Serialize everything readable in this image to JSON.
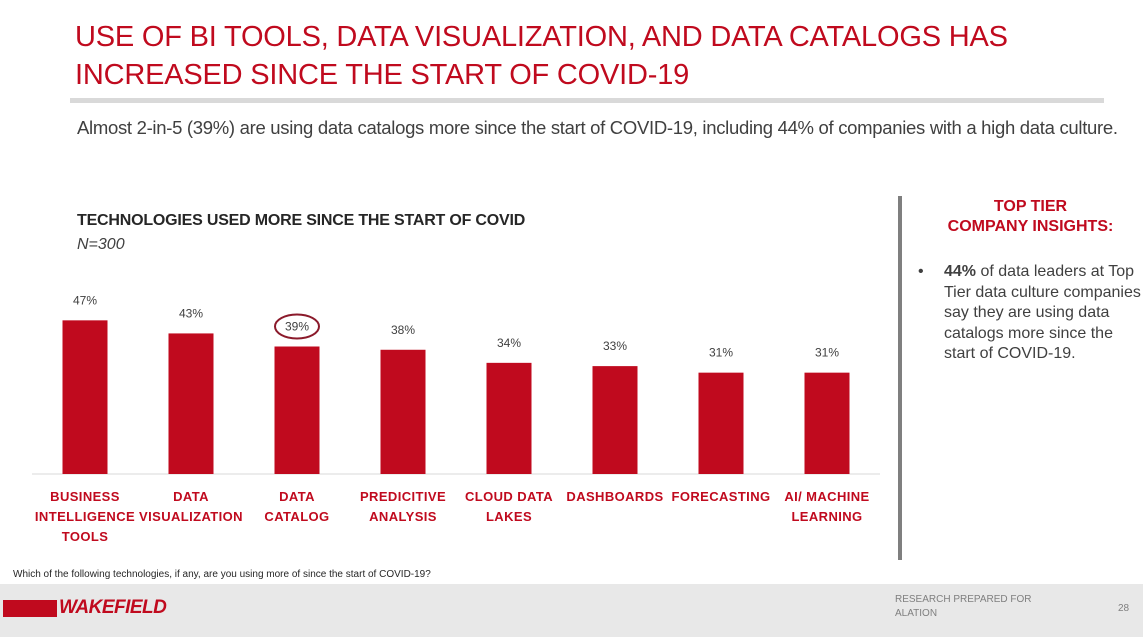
{
  "header": {
    "title": "USE OF BI TOOLS, DATA VISUALIZATION, AND DATA CATALOGS HAS INCREASED SINCE THE START OF COVID-19",
    "subtitle": "Almost 2-in-5 (39%) are using data catalogs more since the start of COVID-19, including 44% of companies with a high data culture."
  },
  "chart_data": {
    "type": "bar",
    "title": "TECHNOLOGIES USED MORE SINCE THE START OF COVID",
    "subtitle": "N=300",
    "categories": [
      [
        "BUSINESS",
        "INTELLIGENCE",
        "TOOLS"
      ],
      [
        "DATA",
        "VISUALIZATION"
      ],
      [
        "DATA",
        "CATALOG"
      ],
      [
        "PREDICITIVE",
        "ANALYSIS"
      ],
      [
        "CLOUD DATA",
        "LAKES"
      ],
      [
        "DASHBOARDS"
      ],
      [
        "FORECASTING"
      ],
      [
        "AI/ MACHINE",
        "LEARNING"
      ]
    ],
    "values": [
      47,
      43,
      39,
      38,
      34,
      33,
      31,
      31
    ],
    "value_labels": [
      "47%",
      "43%",
      "39%",
      "38%",
      "34%",
      "33%",
      "31%",
      "31%"
    ],
    "highlighted_index": 2,
    "ylim": [
      0,
      52
    ],
    "bar_color": "#c00a1e",
    "highlight_color": "#8b1a2b",
    "grid": false,
    "legend": "none"
  },
  "sidebar": {
    "heading_line1": "TOP TIER",
    "heading_line2": "COMPANY INSIGHTS:",
    "bullet": "•",
    "insight_strong": "44%",
    "insight_rest": " of data leaders at Top Tier data culture companies say they are using data catalogs more since the start of COVID-19."
  },
  "question": "Which of the following technologies, if any, are you using more of since the start of COVID-19?",
  "footer": {
    "logo_text": "WAKEFIELD",
    "note_line1": "RESEARCH PREPARED FOR",
    "note_line2": "ALATION",
    "page_number": "28"
  }
}
